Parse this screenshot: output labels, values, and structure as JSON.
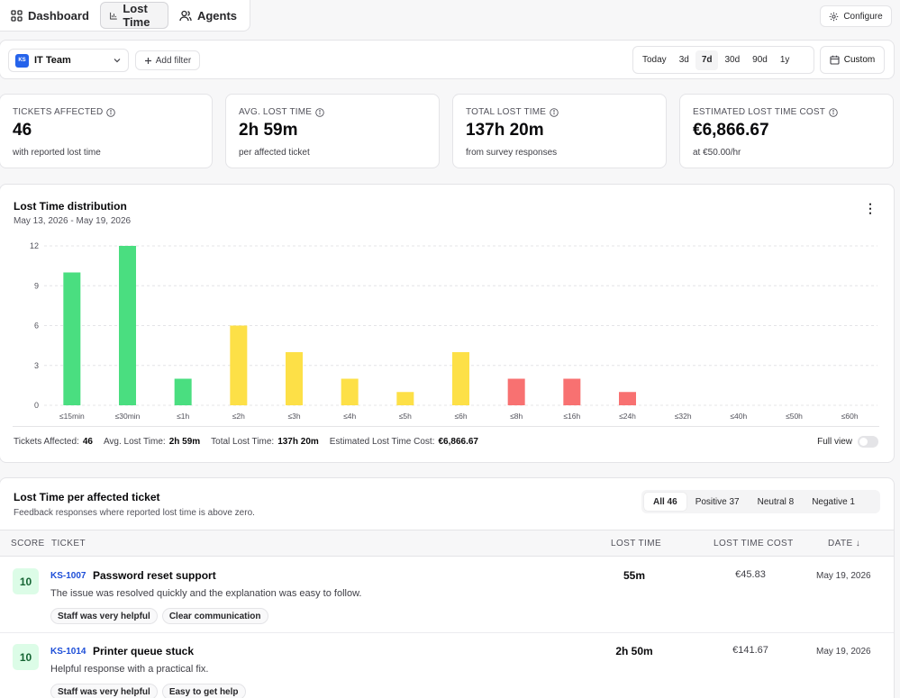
{
  "nav": {
    "tabs": [
      {
        "label": "Dashboard",
        "icon": "grid-icon"
      },
      {
        "label": "Lost Time",
        "icon": "bar-chart-icon"
      },
      {
        "label": "Agents",
        "icon": "users-icon"
      }
    ],
    "configure_label": "Configure"
  },
  "filters": {
    "team_badge": "KS",
    "team": "IT Team",
    "add_filter": "Add filter",
    "ranges": [
      "Today",
      "3d",
      "7d",
      "30d",
      "90d",
      "1y"
    ],
    "active_range": "7d",
    "custom": "Custom"
  },
  "stats": [
    {
      "label": "TICKETS AFFECTED",
      "value": "46",
      "sub": "with reported lost time"
    },
    {
      "label": "AVG. LOST TIME",
      "value": "2h 59m",
      "sub": "per affected ticket"
    },
    {
      "label": "TOTAL LOST TIME",
      "value": "137h 20m",
      "sub": "from survey responses"
    },
    {
      "label": "ESTIMATED LOST TIME COST",
      "value": "€6,866.67",
      "sub": "at €50.00/hr"
    }
  ],
  "distribution": {
    "title": "Lost Time distribution",
    "date_range": "May 13, 2026 - May 19, 2026",
    "summary": {
      "tickets_label": "Tickets Affected:",
      "tickets_value": "46",
      "avg_label": "Avg. Lost Time:",
      "avg_value": "2h 59m",
      "total_label": "Total Lost Time:",
      "total_value": "137h 20m",
      "cost_label": "Estimated Lost Time Cost:",
      "cost_value": "€6,866.67"
    },
    "full_view_label": "Full view"
  },
  "chart_data": {
    "type": "bar",
    "categories": [
      "≤15min",
      "≤30min",
      "≤1h",
      "≤2h",
      "≤3h",
      "≤4h",
      "≤5h",
      "≤6h",
      "≤8h",
      "≤16h",
      "≤24h",
      "≤32h",
      "≤40h",
      "≤50h",
      "≤60h"
    ],
    "values": [
      10,
      12,
      2,
      6,
      4,
      2,
      1,
      4,
      2,
      2,
      1,
      0,
      0,
      0,
      0
    ],
    "bar_colors": [
      "#4ade80",
      "#4ade80",
      "#4ade80",
      "#fde047",
      "#fde047",
      "#fde047",
      "#fde047",
      "#fde047",
      "#f87171",
      "#f87171",
      "#f87171",
      "#f87171",
      "#f87171",
      "#f87171",
      "#f87171"
    ],
    "yticks": [
      0,
      3,
      6,
      9,
      12
    ],
    "ylim": [
      0,
      12
    ],
    "grid": true
  },
  "feedback": {
    "title": "Lost Time per affected ticket",
    "subtitle": "Feedback responses where reported lost time is above zero.",
    "segments": [
      "All 46",
      "Positive 37",
      "Neutral 8",
      "Negative 1"
    ],
    "columns": {
      "score": "SCORE",
      "ticket": "TICKET",
      "lost_time": "LOST TIME",
      "cost": "LOST TIME COST",
      "date": "DATE ↓"
    },
    "rows": [
      {
        "score": "10",
        "id": "KS-1007",
        "name": "Password reset support",
        "comment": "The issue was resolved quickly and the explanation was easy to follow.",
        "tags": [
          "Staff was very helpful",
          "Clear communication"
        ],
        "lost_time": "55m",
        "cost": "€45.83",
        "date": "May 19, 2026"
      },
      {
        "score": "10",
        "id": "KS-1014",
        "name": "Printer queue stuck",
        "comment": "Helpful response with a practical fix.",
        "tags": [
          "Staff was very helpful",
          "Easy to get help"
        ],
        "lost_time": "2h 50m",
        "cost": "€141.67",
        "date": "May 19, 2026"
      }
    ]
  }
}
